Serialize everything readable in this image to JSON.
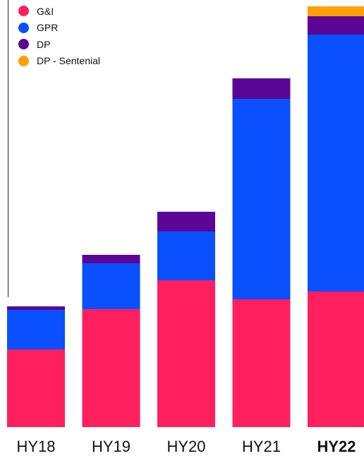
{
  "chart_data": {
    "type": "bar",
    "stacked": true,
    "categories": [
      "HY18",
      "HY19",
      "HY20",
      "HY21",
      "HY22"
    ],
    "highlight_category": "HY22",
    "series": [
      {
        "name": "G&I",
        "color": "#ff1f5f",
        "values": [
          110,
          167,
          208,
          181,
          192
        ]
      },
      {
        "name": "GPR",
        "color": "#0a50ff",
        "values": [
          56,
          65,
          69,
          284,
          364
        ]
      },
      {
        "name": "DP",
        "color": "#5b0696",
        "values": [
          5,
          12,
          28,
          29,
          26
        ]
      },
      {
        "name": "DP - Sentenial",
        "color": "#ffa000",
        "values": [
          0,
          0,
          0,
          0,
          14
        ]
      }
    ],
    "ylim": [
      0,
      600
    ],
    "grid": false,
    "legend_position": "top-left",
    "title": "",
    "xlabel": "",
    "ylabel": ""
  }
}
